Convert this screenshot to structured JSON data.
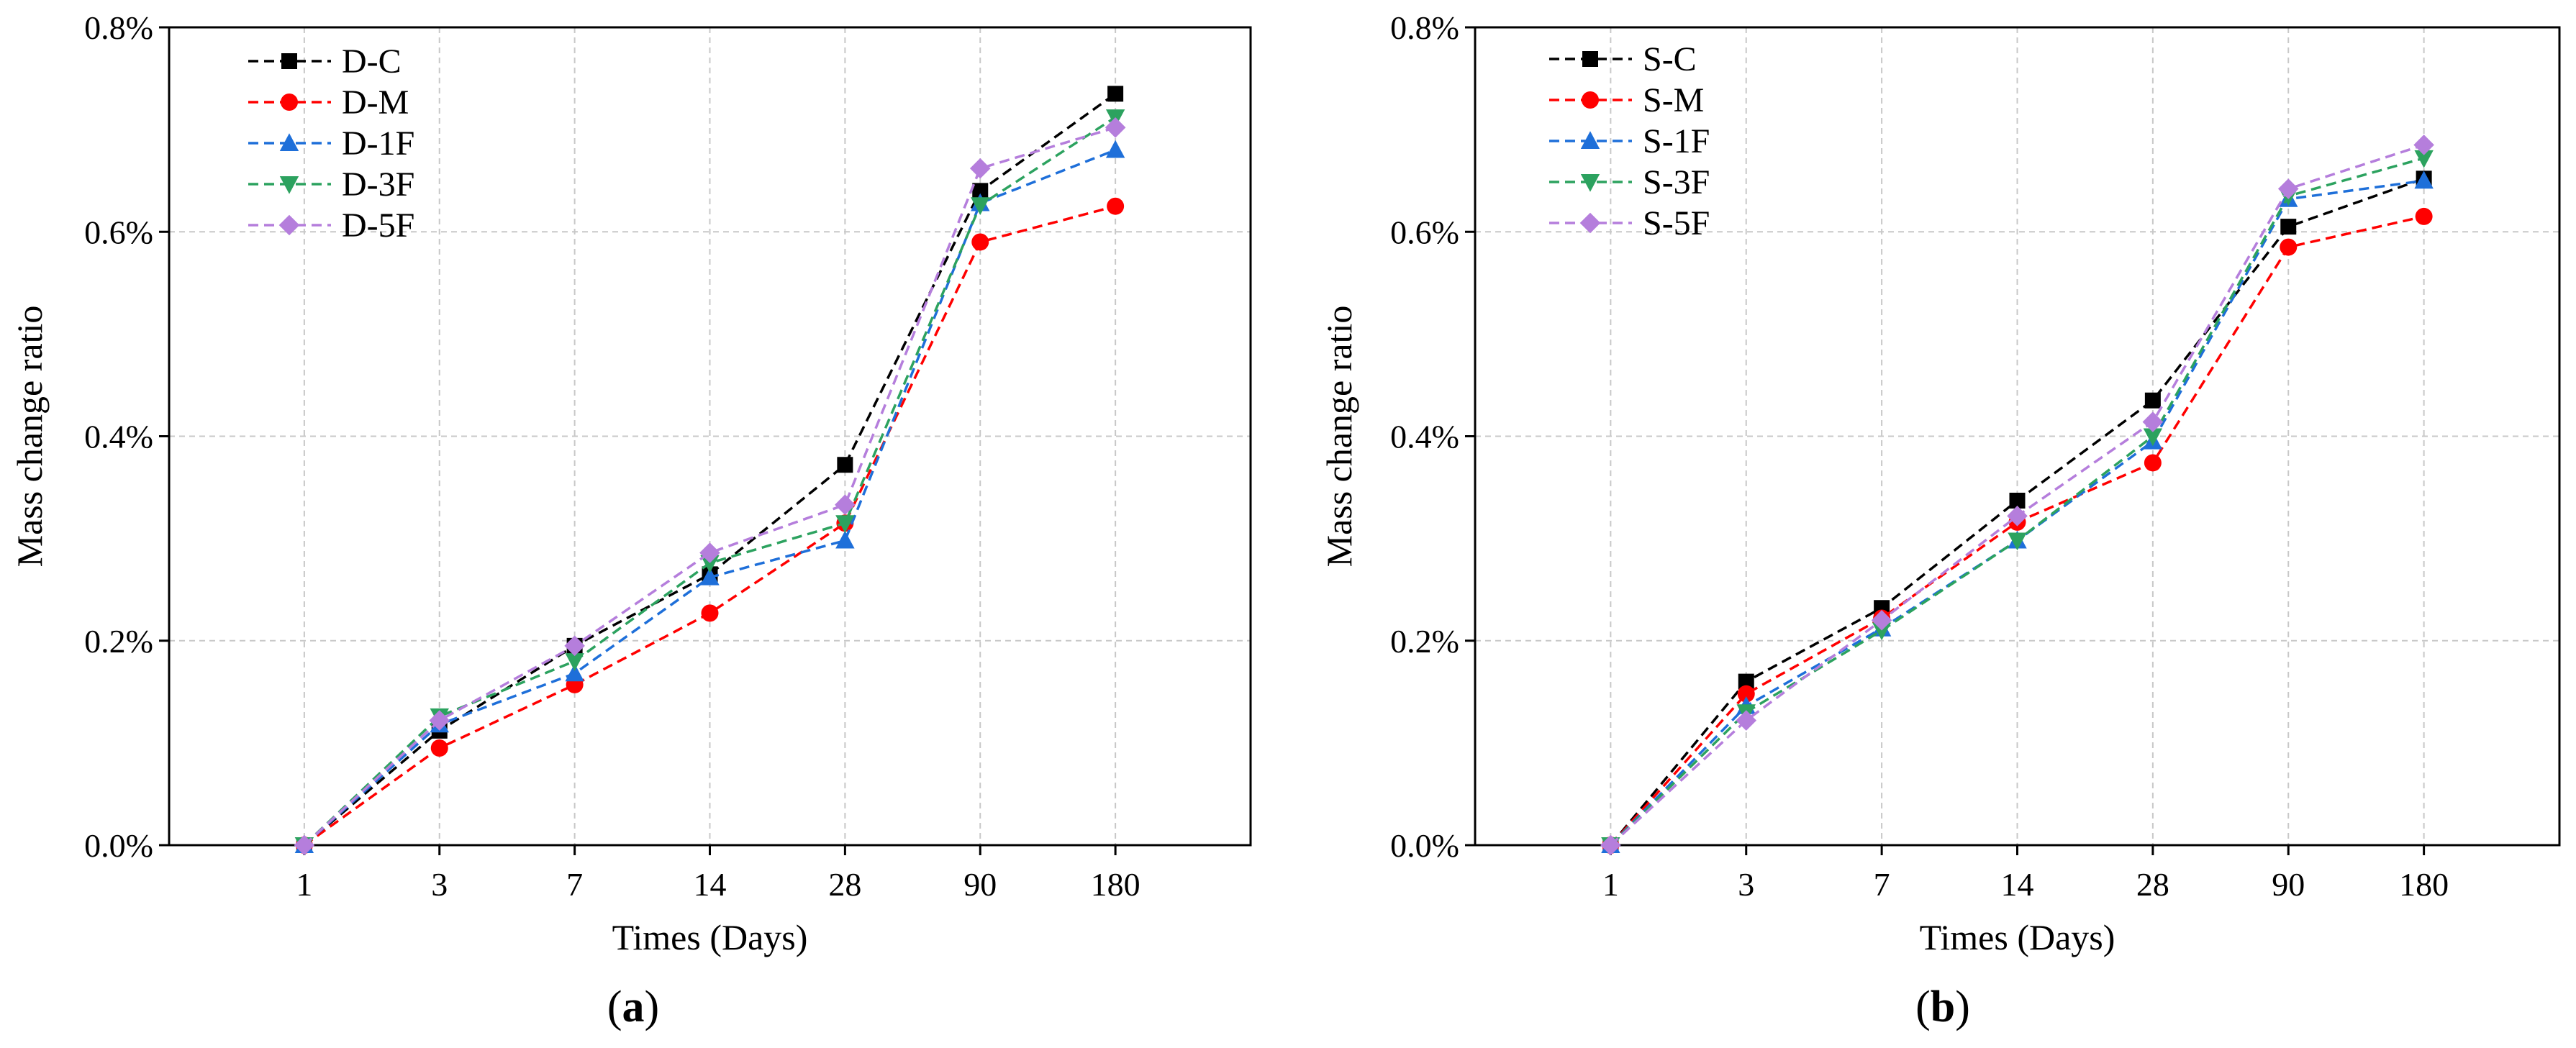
{
  "chart_data": [
    {
      "type": "line",
      "panel_label": "a",
      "xlabel": "Times (Days)",
      "ylabel": "Mass change ratio",
      "categories": [
        "1",
        "3",
        "7",
        "14",
        "28",
        "90",
        "180"
      ],
      "ylim": [
        0,
        0.8
      ],
      "yticks": [
        "0.0%",
        "0.2%",
        "0.4%",
        "0.6%",
        "0.8%"
      ],
      "grid": true,
      "legend_position": "top-left",
      "series": [
        {
          "name": "D-C",
          "color": "#000000",
          "marker": "square",
          "values": [
            0.0,
            0.112,
            0.195,
            0.265,
            0.372,
            0.64,
            0.735
          ]
        },
        {
          "name": "D-M",
          "color": "#ff0000",
          "marker": "circle",
          "values": [
            0.0,
            0.095,
            0.157,
            0.227,
            0.315,
            0.59,
            0.625
          ]
        },
        {
          "name": "D-1F",
          "color": "#1e6fd9",
          "marker": "triangle-up",
          "values": [
            0.0,
            0.118,
            0.168,
            0.262,
            0.298,
            0.628,
            0.68
          ]
        },
        {
          "name": "D-3F",
          "color": "#2ca25f",
          "marker": "triangle-down",
          "values": [
            0.0,
            0.126,
            0.18,
            0.276,
            0.315,
            0.626,
            0.712
          ]
        },
        {
          "name": "D-5F",
          "color": "#b57edc",
          "marker": "diamond",
          "values": [
            0.0,
            0.122,
            0.195,
            0.286,
            0.333,
            0.662,
            0.702
          ]
        }
      ]
    },
    {
      "type": "line",
      "panel_label": "b",
      "xlabel": "Times (Days)",
      "ylabel": "Mass change ratio",
      "categories": [
        "1",
        "3",
        "7",
        "14",
        "28",
        "90",
        "180"
      ],
      "ylim": [
        0,
        0.8
      ],
      "yticks": [
        "0.0%",
        "0.2%",
        "0.4%",
        "0.6%",
        "0.8%"
      ],
      "grid": true,
      "legend_position": "top-left",
      "series": [
        {
          "name": "S-C",
          "color": "#000000",
          "marker": "square",
          "values": [
            0.0,
            0.16,
            0.232,
            0.337,
            0.435,
            0.605,
            0.652
          ]
        },
        {
          "name": "S-M",
          "color": "#ff0000",
          "marker": "circle",
          "values": [
            0.0,
            0.148,
            0.222,
            0.316,
            0.374,
            0.585,
            0.615
          ]
        },
        {
          "name": "S-1F",
          "color": "#1e6fd9",
          "marker": "triangle-up",
          "values": [
            0.0,
            0.136,
            0.212,
            0.298,
            0.395,
            0.632,
            0.65
          ]
        },
        {
          "name": "S-3F",
          "color": "#2ca25f",
          "marker": "triangle-down",
          "values": [
            0.0,
            0.13,
            0.21,
            0.298,
            0.4,
            0.635,
            0.672
          ]
        },
        {
          "name": "S-5F",
          "color": "#b57edc",
          "marker": "diamond",
          "values": [
            0.0,
            0.122,
            0.22,
            0.322,
            0.414,
            0.642,
            0.685
          ]
        }
      ]
    }
  ]
}
